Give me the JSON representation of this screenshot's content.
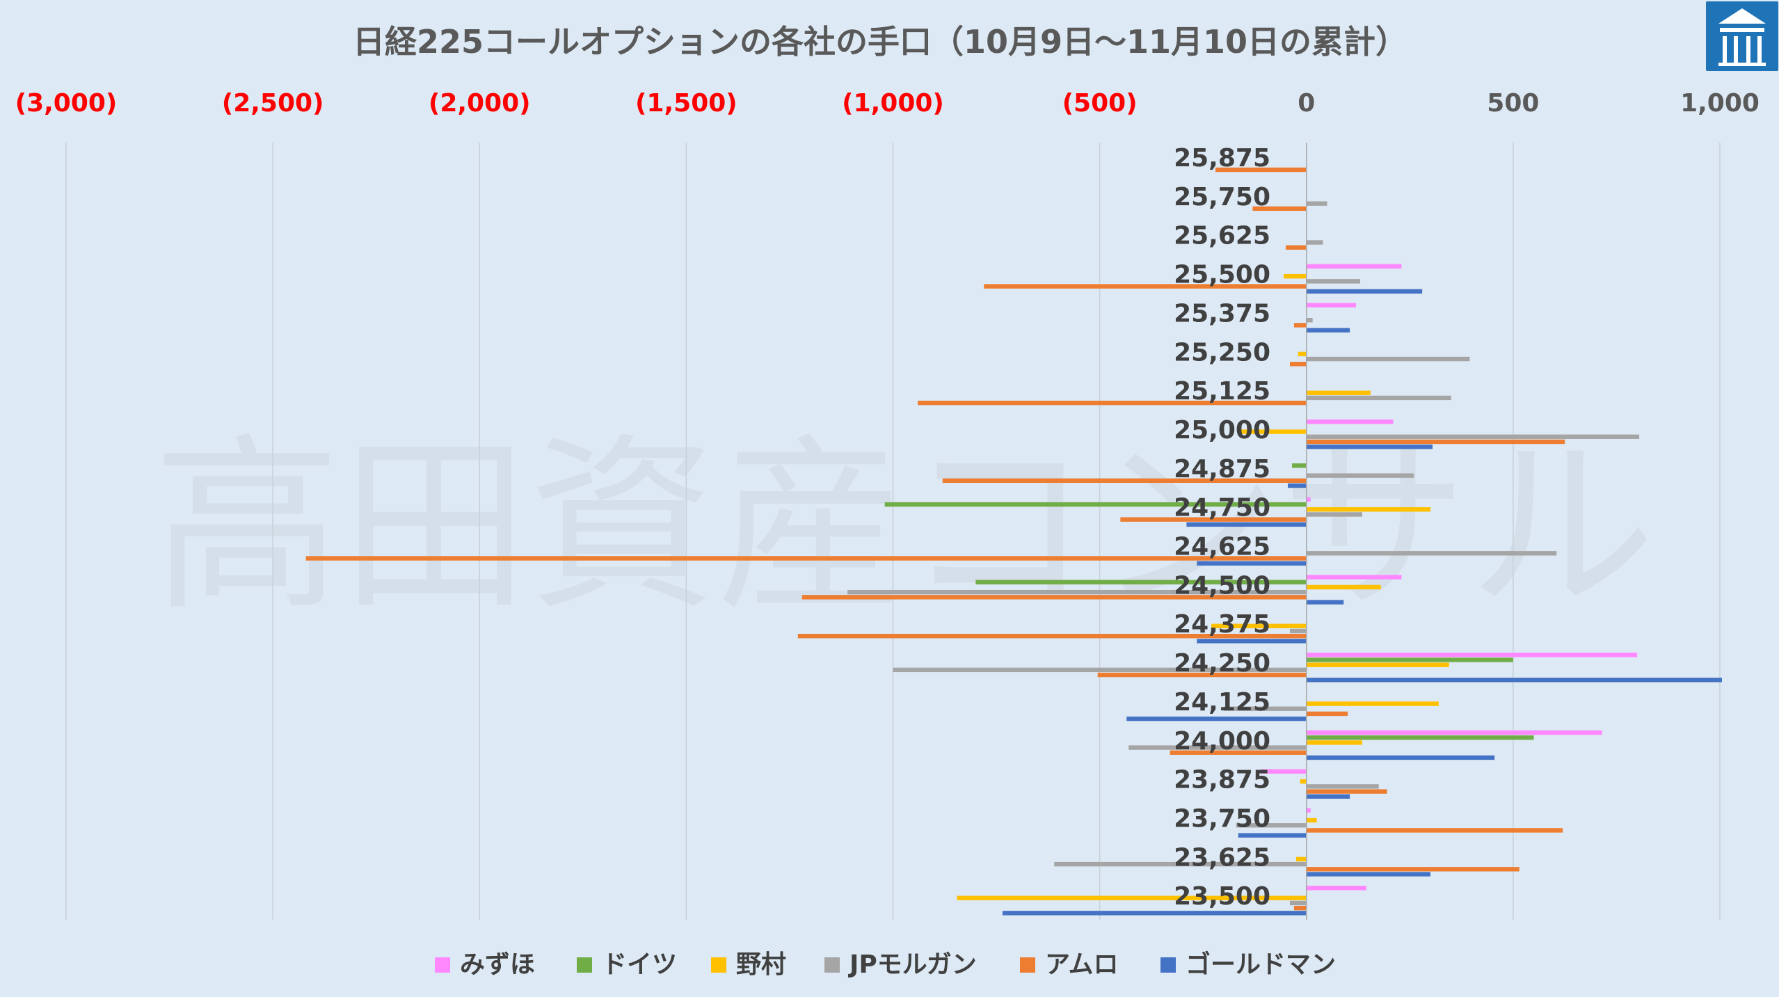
{
  "chart_data": {
    "type": "bar",
    "orientation": "horizontal",
    "title": "日経225コールオプションの各社の手口（10月9日～11月10日の累計）",
    "watermark": "高田資産コンサル",
    "xlim": [
      -3000,
      1000
    ],
    "xticks": [
      -3000,
      -2500,
      -2000,
      -1500,
      -1000,
      -500,
      0,
      500,
      1000
    ],
    "xtick_labels": [
      "(3,000)",
      "(2,500)",
      "(2,000)",
      "(1,500)",
      "(1,000)",
      "(500)",
      "0",
      "500",
      "1,000"
    ],
    "negative_tick_color": "#ff0000",
    "positive_tick_color": "#595959",
    "gridlines": "vertical",
    "legend_position": "bottom",
    "categories": [
      "25,875",
      "25,750",
      "25,625",
      "25,500",
      "25,375",
      "25,250",
      "25,125",
      "25,000",
      "24,875",
      "24,750",
      "24,625",
      "24,500",
      "24,375",
      "24,250",
      "24,125",
      "24,000",
      "23,875",
      "23,750",
      "23,625",
      "23,500"
    ],
    "series": [
      {
        "name": "みずほ",
        "color": "#ff88ff",
        "values": [
          0,
          0,
          0,
          230,
          120,
          0,
          0,
          210,
          0,
          10,
          0,
          230,
          0,
          800,
          0,
          715,
          -110,
          10,
          0,
          145
        ]
      },
      {
        "name": "ドイツ",
        "color": "#70ad47",
        "values": [
          0,
          0,
          0,
          0,
          0,
          0,
          0,
          0,
          -35,
          -1020,
          0,
          -800,
          0,
          500,
          0,
          550,
          0,
          0,
          0,
          0
        ]
      },
      {
        "name": "野村",
        "color": "#ffc000",
        "values": [
          0,
          0,
          0,
          -55,
          0,
          -20,
          155,
          -160,
          0,
          300,
          0,
          180,
          -230,
          345,
          320,
          135,
          -15,
          25,
          -25,
          -845
        ]
      },
      {
        "name": "JPモルガン",
        "color": "#a5a5a5",
        "values": [
          0,
          50,
          40,
          130,
          15,
          395,
          350,
          805,
          260,
          135,
          605,
          -1110,
          -40,
          -1000,
          -200,
          -430,
          175,
          -170,
          -610,
          -40
        ]
      },
      {
        "name": "アムロ",
        "color": "#ed7d31",
        "values": [
          -220,
          -130,
          -50,
          -780,
          -30,
          -40,
          -940,
          625,
          -880,
          -450,
          -2420,
          -1220,
          -1230,
          -505,
          100,
          -330,
          195,
          620,
          515,
          -30
        ]
      },
      {
        "name": "ゴールドマン",
        "color": "#4472c4",
        "values": [
          0,
          0,
          0,
          280,
          105,
          0,
          0,
          305,
          -45,
          -290,
          -265,
          90,
          -265,
          1005,
          -435,
          455,
          105,
          -165,
          300,
          -735
        ]
      }
    ]
  },
  "logo": {
    "name": "高田資産コンサル logo",
    "color": "#1f73b7"
  }
}
